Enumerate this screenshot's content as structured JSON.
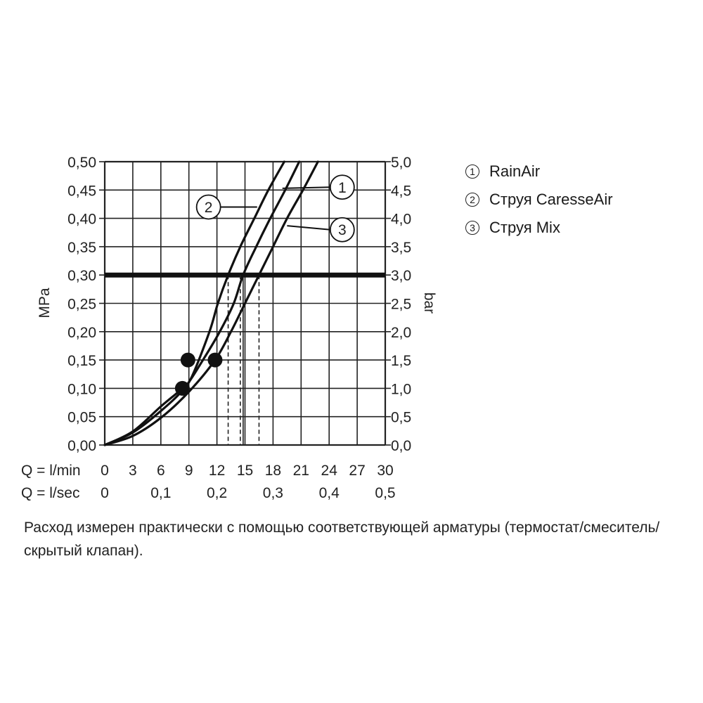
{
  "chart_data": {
    "type": "line",
    "y_left": {
      "label": "MPa",
      "range": [
        0,
        0.5
      ],
      "ticks": [
        "0,00",
        "0,05",
        "0,10",
        "0,15",
        "0,20",
        "0,25",
        "0,30",
        "0,35",
        "0,40",
        "0,45",
        "0,50"
      ]
    },
    "y_right": {
      "label": "bar",
      "range": [
        0,
        5
      ],
      "ticks": [
        "0,0",
        "0,5",
        "1,0",
        "1,5",
        "2,0",
        "2,5",
        "3,0",
        "3,5",
        "4,0",
        "4,5",
        "5,0"
      ]
    },
    "x_lmin": {
      "label": "Q = l/min",
      "range": [
        0,
        30
      ],
      "ticks": [
        "0",
        "3",
        "6",
        "9",
        "12",
        "15",
        "18",
        "21",
        "24",
        "27",
        "30"
      ]
    },
    "x_lsec": {
      "label": "Q = l/sec",
      "ticks": [
        {
          "q": 0,
          "label": "0"
        },
        {
          "q": 6,
          "label": "0,1"
        },
        {
          "q": 12,
          "label": "0,2"
        },
        {
          "q": 18,
          "label": "0,3"
        },
        {
          "q": 24,
          "label": "0,4"
        },
        {
          "q": 30,
          "label": "0,5"
        }
      ]
    },
    "grid": true,
    "reference_line": {
      "pressure": 0.3
    },
    "series": [
      {
        "name": "1",
        "points": [
          [
            0,
            0
          ],
          [
            3,
            0.022
          ],
          [
            6,
            0.06
          ],
          [
            8.5,
            0.1
          ],
          [
            10.5,
            0.15
          ],
          [
            12.3,
            0.2
          ],
          [
            13.8,
            0.25
          ],
          [
            14.8,
            0.3
          ],
          [
            16.2,
            0.35
          ],
          [
            17.7,
            0.4
          ],
          [
            19.3,
            0.45
          ],
          [
            20.8,
            0.5
          ]
        ],
        "label_at": [
          19.0,
          0.453
        ],
        "circle": "1"
      },
      {
        "name": "2",
        "points": [
          [
            0,
            0
          ],
          [
            3,
            0.024
          ],
          [
            6,
            0.068
          ],
          [
            8.3,
            0.1
          ],
          [
            9.3,
            0.12
          ],
          [
            11.2,
            0.2
          ],
          [
            12.1,
            0.25
          ],
          [
            13.2,
            0.3
          ],
          [
            14.5,
            0.35
          ],
          [
            16.0,
            0.4
          ],
          [
            17.5,
            0.45
          ],
          [
            19.2,
            0.5
          ]
        ],
        "label_at": [
          16.3,
          0.42
        ],
        "circle": "2"
      },
      {
        "name": "3",
        "points": [
          [
            0,
            0
          ],
          [
            3,
            0.016
          ],
          [
            6,
            0.048
          ],
          [
            9,
            0.094
          ],
          [
            11.8,
            0.15
          ],
          [
            13.5,
            0.2
          ],
          [
            15.0,
            0.25
          ],
          [
            16.5,
            0.3
          ],
          [
            18.0,
            0.35
          ],
          [
            19.5,
            0.4
          ],
          [
            21.2,
            0.45
          ],
          [
            22.8,
            0.5
          ]
        ],
        "label_at": [
          19.5,
          0.387
        ],
        "circle": "3"
      }
    ],
    "markers": [
      {
        "q": 8.9,
        "p": 0.15
      },
      {
        "q": 11.8,
        "p": 0.15
      },
      {
        "q": 8.3,
        "p": 0.1
      }
    ],
    "drop_lines": [
      {
        "q": 13.2,
        "style": "dashed"
      },
      {
        "q": 14.5,
        "style": "dashed"
      },
      {
        "q": 14.8,
        "style": "solid"
      },
      {
        "q": 16.5,
        "style": "dashed"
      }
    ],
    "circle_labels": [
      {
        "text": "1",
        "q": 25.4,
        "p": 0.455
      },
      {
        "text": "2",
        "q": 11.1,
        "p": 0.42
      },
      {
        "text": "3",
        "q": 25.4,
        "p": 0.38
      }
    ]
  },
  "legend": [
    {
      "num": "1",
      "label": "RainAir"
    },
    {
      "num": "2",
      "label": "Струя CaresseAir"
    },
    {
      "num": "3",
      "label": "Струя Mix"
    }
  ],
  "note": "Расход измерен практически с помощью соответствующей арматуры (термостат/смеситель/скрытый клапан)."
}
